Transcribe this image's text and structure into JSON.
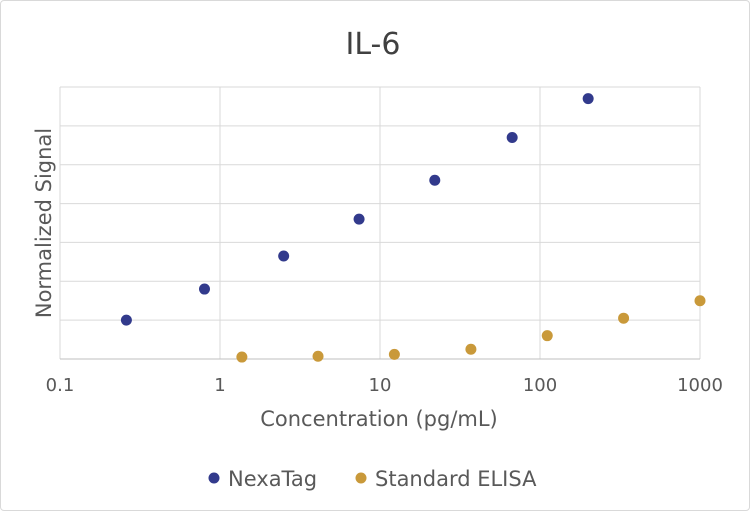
{
  "chart_data": {
    "type": "scatter",
    "title": "IL-6",
    "xlabel": "Concentration (pg/mL)",
    "ylabel": "Normalized Signal",
    "x_scale": "log",
    "xlim": [
      0.1,
      1000
    ],
    "ylim": [
      0,
      7
    ],
    "x_ticks": [
      "0.1",
      "1",
      "10",
      "100",
      "1000"
    ],
    "grid": true,
    "legend_position": "bottom",
    "series": [
      {
        "name": "NexaTag",
        "color": "#323a8c",
        "x": [
          0.26,
          0.8,
          2.5,
          7.4,
          22,
          67,
          200
        ],
        "y": [
          1.0,
          1.8,
          2.65,
          3.6,
          4.6,
          5.7,
          6.7
        ]
      },
      {
        "name": "Standard ELISA",
        "color": "#c9993a",
        "x": [
          1.37,
          4.1,
          12.3,
          37,
          111,
          333,
          1000
        ],
        "y": [
          0.05,
          0.07,
          0.12,
          0.25,
          0.6,
          1.05,
          1.5
        ]
      }
    ]
  }
}
